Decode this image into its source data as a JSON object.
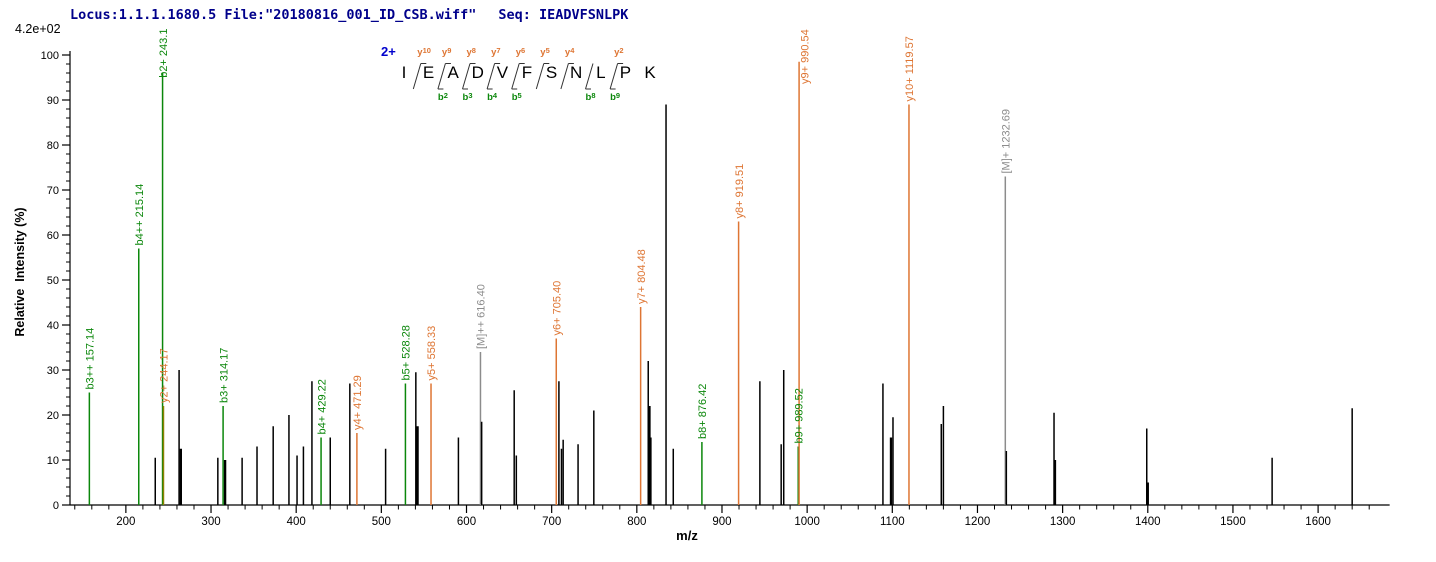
{
  "header": {
    "locus_file": "Locus:1.1.1.1680.5 File:\"20180816_001_ID_CSB.wiff\"",
    "seq_label": "Seq: IEADVFSNLPK"
  },
  "scale_label": "4.2e+02",
  "peptide": {
    "charge_label": "2+",
    "residues": [
      "I",
      "E",
      "A",
      "D",
      "V",
      "F",
      "S",
      "N",
      "L",
      "P",
      "K"
    ],
    "boundaries": [
      {
        "index": 0,
        "y": 10
      },
      {
        "index": 1,
        "y": 9,
        "b": 2
      },
      {
        "index": 2,
        "y": 8,
        "b": 3
      },
      {
        "index": 3,
        "y": 7,
        "b": 4
      },
      {
        "index": 4,
        "y": 6,
        "b": 5
      },
      {
        "index": 5,
        "y": 5
      },
      {
        "index": 6,
        "y": 4
      },
      {
        "index": 7,
        "b": 8
      },
      {
        "index": 8,
        "y": 2,
        "b": 9
      }
    ]
  },
  "chart_data": {
    "type": "bar",
    "subtype": "tandem-ms-stick-spectrum",
    "title": "",
    "xlabel": "m/z",
    "ylabel": "Relative  Intensity (%)",
    "xlim": [
      134,
      1684
    ],
    "ylim": [
      0,
      100
    ],
    "x_major_ticks": [
      200,
      300,
      400,
      500,
      600,
      700,
      800,
      900,
      1000,
      1100,
      1200,
      1300,
      1400,
      1500,
      1600
    ],
    "x_minor_step": 20,
    "y_major_step": 10,
    "y_minor_step": 2,
    "grid": false,
    "legend": false,
    "colors": {
      "b": "#0B870B",
      "y": "#DE7533",
      "M": "#8C8C8C",
      "by": "#8E8000",
      "x": "#000000"
    },
    "peaks": [
      {
        "mz": 157.14,
        "i": 25,
        "t": "b",
        "label": "b3++ 157.14"
      },
      {
        "mz": 215.14,
        "i": 57,
        "t": "b",
        "label": "b4++ 215.14"
      },
      {
        "mz": 234.5,
        "i": 10.5,
        "t": "x"
      },
      {
        "mz": 243.1,
        "i": 96,
        "t": "b",
        "label": "b2+ 243.1"
      },
      {
        "mz": 244.17,
        "i": 22,
        "t": "by",
        "lt": "y",
        "label": "y2+ 244.17"
      },
      {
        "mz": 262.5,
        "i": 30,
        "t": "x"
      },
      {
        "mz": 264.5,
        "i": 12.5,
        "t": "x",
        "w": 2.4
      },
      {
        "mz": 308,
        "i": 10.5,
        "t": "x"
      },
      {
        "mz": 314.17,
        "i": 22,
        "t": "b",
        "label": "b3+ 314.17"
      },
      {
        "mz": 316.5,
        "i": 10,
        "t": "x",
        "w": 2.4
      },
      {
        "mz": 336.5,
        "i": 10.5,
        "t": "x"
      },
      {
        "mz": 354,
        "i": 13,
        "t": "x"
      },
      {
        "mz": 373,
        "i": 17.5,
        "t": "x"
      },
      {
        "mz": 391.5,
        "i": 20,
        "t": "x"
      },
      {
        "mz": 401,
        "i": 11,
        "t": "x"
      },
      {
        "mz": 408.5,
        "i": 13,
        "t": "x"
      },
      {
        "mz": 418.5,
        "i": 27.5,
        "t": "x"
      },
      {
        "mz": 429.22,
        "i": 15,
        "t": "b",
        "label": "b4+ 429.22"
      },
      {
        "mz": 440,
        "i": 15,
        "t": "x"
      },
      {
        "mz": 463,
        "i": 27,
        "t": "x"
      },
      {
        "mz": 471.29,
        "i": 16,
        "t": "y",
        "label": "y4+ 471.29"
      },
      {
        "mz": 505,
        "i": 12.5,
        "t": "x"
      },
      {
        "mz": 528.28,
        "i": 27,
        "t": "b",
        "label": "b5+ 528.28"
      },
      {
        "mz": 540.5,
        "i": 29.5,
        "t": "x"
      },
      {
        "mz": 542.5,
        "i": 17.5,
        "t": "x",
        "w": 2.4
      },
      {
        "mz": 558.33,
        "i": 27,
        "t": "y",
        "label": "y5+ 558.33"
      },
      {
        "mz": 590.5,
        "i": 15,
        "t": "x"
      },
      {
        "mz": 616.4,
        "i": 34,
        "t": "M",
        "label": "[M]++ 616.40"
      },
      {
        "mz": 617.8,
        "i": 18.5,
        "t": "x"
      },
      {
        "mz": 656,
        "i": 25.5,
        "t": "x"
      },
      {
        "mz": 658.5,
        "i": 11,
        "t": "x"
      },
      {
        "mz": 705.4,
        "i": 37,
        "t": "y",
        "label": "y6+ 705.40"
      },
      {
        "mz": 708.5,
        "i": 27.5,
        "t": "x"
      },
      {
        "mz": 711.5,
        "i": 12.5,
        "t": "x"
      },
      {
        "mz": 713.5,
        "i": 14.5,
        "t": "x"
      },
      {
        "mz": 731,
        "i": 13.5,
        "t": "x"
      },
      {
        "mz": 749.5,
        "i": 21,
        "t": "x"
      },
      {
        "mz": 804.48,
        "i": 44,
        "t": "y",
        "label": "y7+ 804.48"
      },
      {
        "mz": 813.4,
        "i": 32,
        "t": "x"
      },
      {
        "mz": 814.8,
        "i": 22,
        "t": "x",
        "w": 2.4
      },
      {
        "mz": 816.2,
        "i": 15,
        "t": "x",
        "w": 2
      },
      {
        "mz": 834.3,
        "i": 89,
        "t": "x"
      },
      {
        "mz": 842.8,
        "i": 12.5,
        "t": "x"
      },
      {
        "mz": 876.42,
        "i": 14,
        "t": "b",
        "label": "b8+ 876.42"
      },
      {
        "mz": 919.51,
        "i": 63,
        "t": "y",
        "label": "y8+ 919.51"
      },
      {
        "mz": 944.5,
        "i": 27.5,
        "t": "x"
      },
      {
        "mz": 969.5,
        "i": 13.5,
        "t": "x"
      },
      {
        "mz": 972.5,
        "i": 30,
        "t": "x"
      },
      {
        "mz": 989.52,
        "i": 13,
        "t": "b",
        "label": "b9+ 989.52"
      },
      {
        "mz": 990.54,
        "i": 98.5,
        "t": "y",
        "label": "y9+ 990.54"
      },
      {
        "mz": 1089,
        "i": 27,
        "t": "x"
      },
      {
        "mz": 1098.5,
        "i": 15,
        "t": "x",
        "w": 2.4
      },
      {
        "mz": 1100.8,
        "i": 19.5,
        "t": "x"
      },
      {
        "mz": 1119.57,
        "i": 89,
        "t": "y",
        "label": "y10+ 1119.57"
      },
      {
        "mz": 1157.5,
        "i": 18,
        "t": "x"
      },
      {
        "mz": 1160,
        "i": 22,
        "t": "x"
      },
      {
        "mz": 1232.69,
        "i": 73,
        "t": "M",
        "label": "[M]+ 1232.69"
      },
      {
        "mz": 1233.9,
        "i": 12,
        "t": "x"
      },
      {
        "mz": 1289.9,
        "i": 20.5,
        "t": "x"
      },
      {
        "mz": 1291.2,
        "i": 10,
        "t": "x",
        "w": 2
      },
      {
        "mz": 1398.8,
        "i": 17,
        "t": "x"
      },
      {
        "mz": 1400.2,
        "i": 5,
        "t": "x",
        "w": 2
      },
      {
        "mz": 1546,
        "i": 10.5,
        "t": "x"
      },
      {
        "mz": 1640,
        "i": 21.5,
        "t": "x"
      }
    ]
  }
}
